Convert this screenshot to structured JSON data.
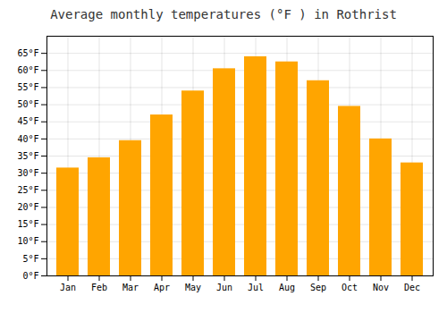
{
  "chart_data": {
    "type": "bar",
    "title": "Average monthly temperatures (°F ) in Rothrist",
    "categories": [
      "Jan",
      "Feb",
      "Mar",
      "Apr",
      "May",
      "Jun",
      "Jul",
      "Aug",
      "Sep",
      "Oct",
      "Nov",
      "Dec"
    ],
    "values": [
      31.5,
      34.5,
      39.5,
      47.0,
      54.0,
      60.5,
      64.0,
      62.5,
      57.0,
      49.5,
      40.0,
      33.0
    ],
    "color": "#FFA500",
    "ylim": [
      0,
      70
    ],
    "yticks": [
      {
        "value": 0,
        "label": "0°F"
      },
      {
        "value": 5,
        "label": "5°F"
      },
      {
        "value": 10,
        "label": "10°F"
      },
      {
        "value": 15,
        "label": "15°F"
      },
      {
        "value": 20,
        "label": "20°F"
      },
      {
        "value": 25,
        "label": "25°F"
      },
      {
        "value": 30,
        "label": "30°F"
      },
      {
        "value": 35,
        "label": "35°F"
      },
      {
        "value": 40,
        "label": "40°F"
      },
      {
        "value": 45,
        "label": "45°F"
      },
      {
        "value": 50,
        "label": "50°F"
      },
      {
        "value": 55,
        "label": "55°F"
      },
      {
        "value": 60,
        "label": "60°F"
      },
      {
        "value": 65,
        "label": "65°F"
      }
    ],
    "grid": true
  }
}
